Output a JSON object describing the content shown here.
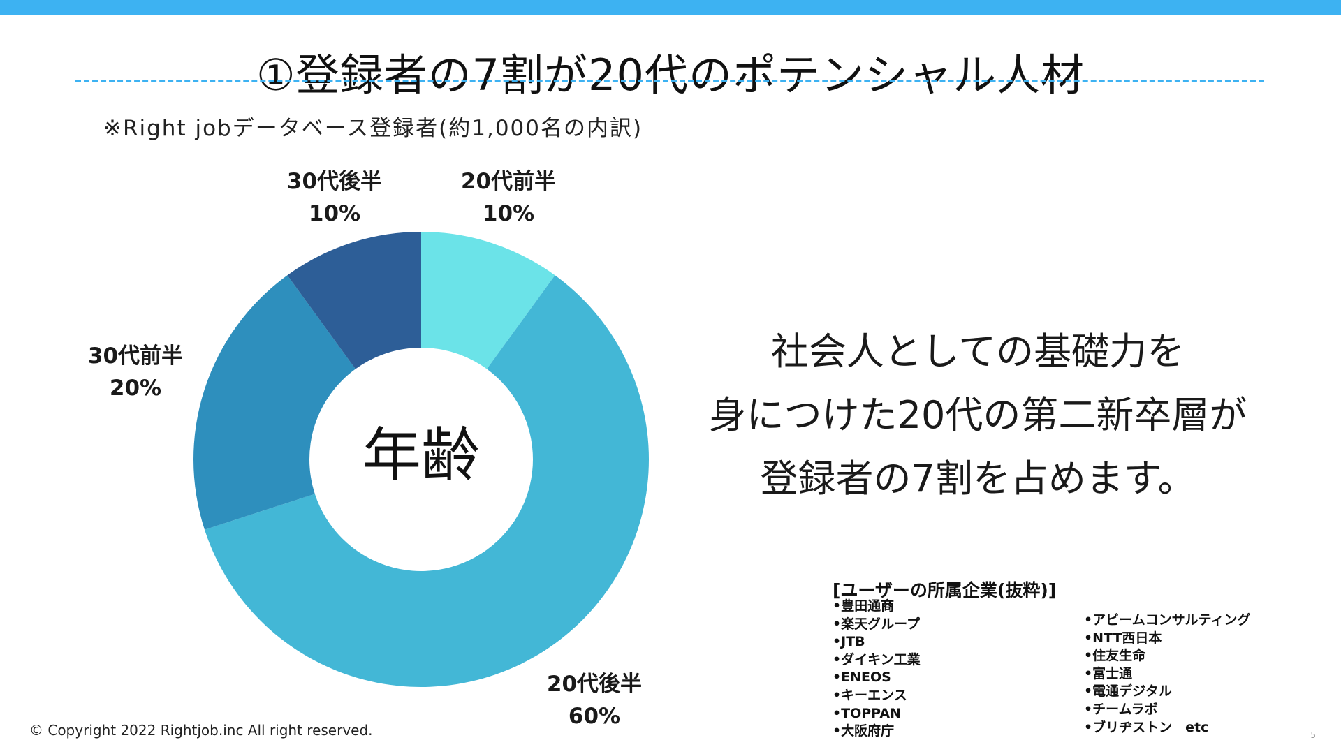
{
  "title": "①登録者の7割が20代のポテンシャル人材",
  "subtitle": "※Right jobデータベース登録者(約1,000名の内訳)",
  "chart_data": {
    "type": "pie",
    "donut": true,
    "center_label": "年齢",
    "slices": [
      {
        "label": "20代前半",
        "value": 10,
        "value_label": "10%",
        "color": "#6be3e8"
      },
      {
        "label": "20代後半",
        "value": 60,
        "value_label": "60%",
        "color": "#43b7d6"
      },
      {
        "label": "30代前半",
        "value": 20,
        "value_label": "20%",
        "color": "#2e8fbd"
      },
      {
        "label": "30代後半",
        "value": 10,
        "value_label": "10%",
        "color": "#2d5e97"
      }
    ]
  },
  "statement": {
    "lines": [
      "社会人としての基礎力を",
      "身につけた20代の第二新卒層が",
      "登録者の7割を占めます。"
    ]
  },
  "companies": {
    "heading": "[ユーザーの所属企業(抜粋)]",
    "left": [
      "•豊田通商",
      "•楽天グループ",
      "•JTB",
      "•ダイキン工業",
      "•ENEOS",
      "•キーエンス",
      "•TOPPAN",
      "•大阪府庁"
    ],
    "right": [
      "•アビームコンサルティング",
      "•NTT西日本",
      "•住友生命",
      "•富士通",
      "•電通デジタル",
      "•チームラボ",
      "•ブリヂストン　etc"
    ]
  },
  "footer": {
    "copyright": "© Copyright 2022 Rightjob.inc All right reserved.",
    "page_number": "5"
  },
  "colors": {
    "accent": "#3db2f2"
  }
}
